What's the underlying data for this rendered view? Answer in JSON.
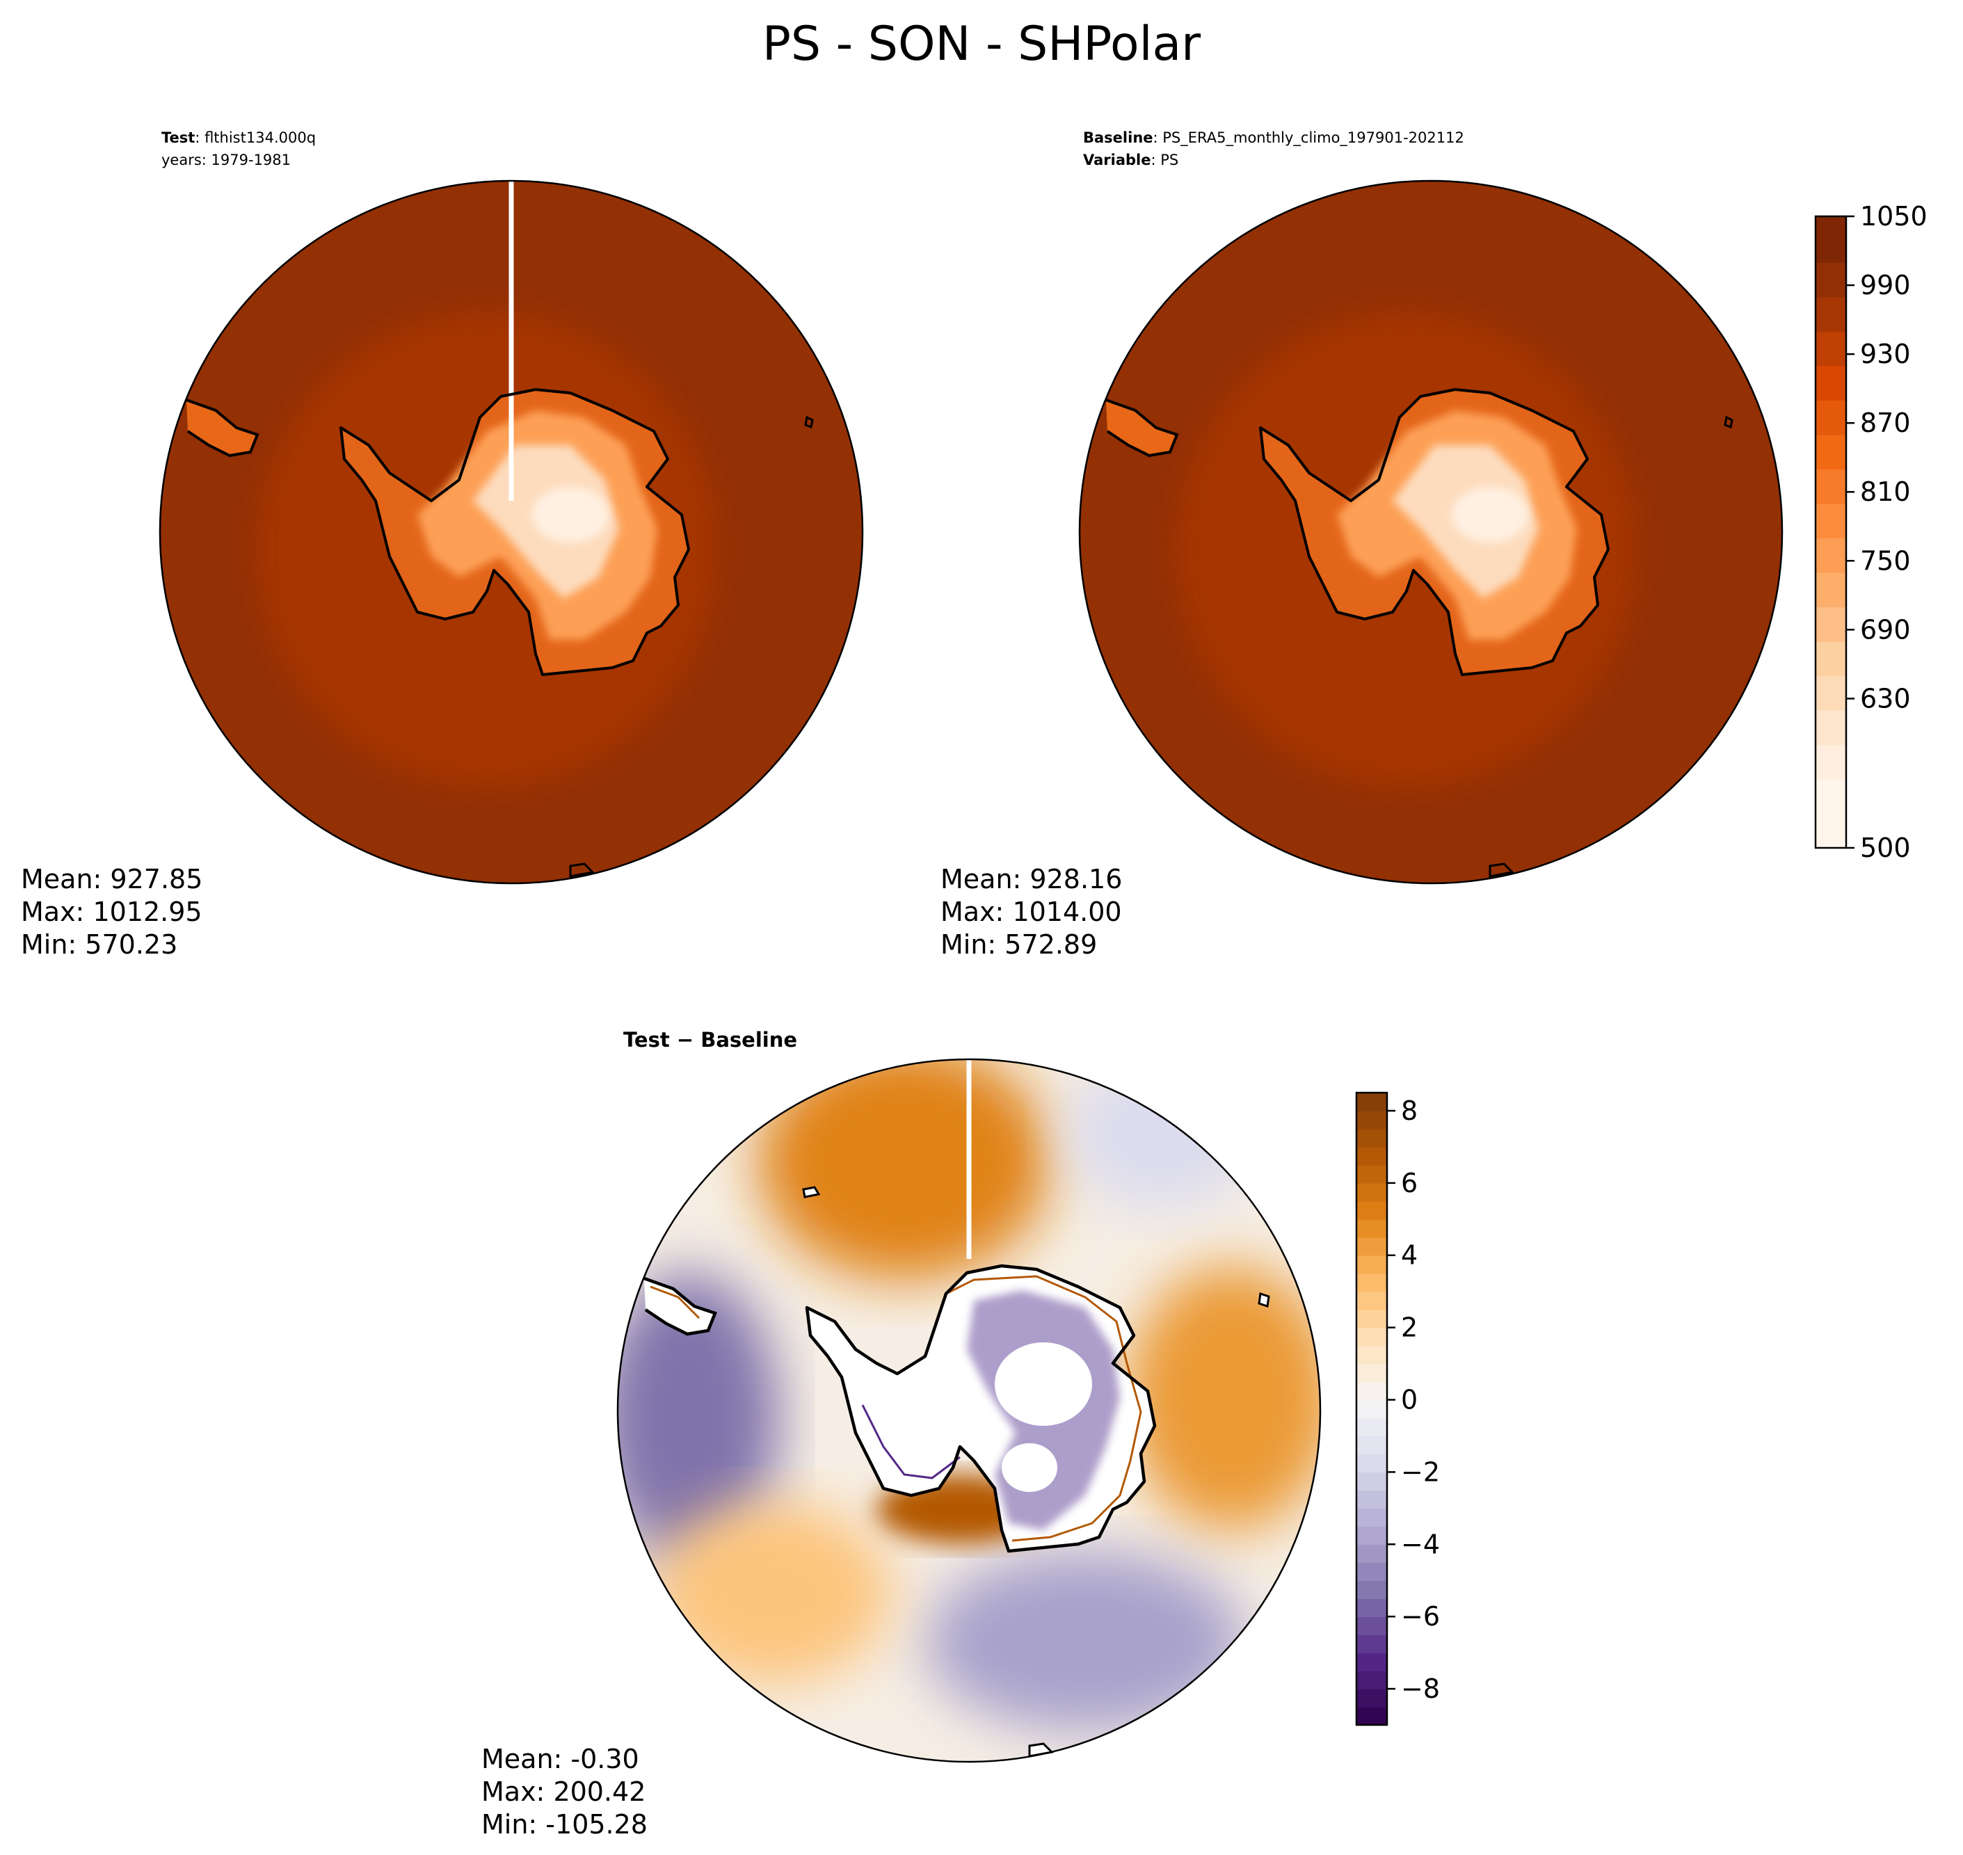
{
  "figure": {
    "title": "PS - SON - SHPolar"
  },
  "panels": {
    "test": {
      "header_bold": "Test",
      "header_value": ": flthist134.000q",
      "header_line2": "years: 1979-1981",
      "stats": {
        "mean": "Mean: 927.85",
        "max": "Max: 1012.95",
        "min": "Min: 570.23"
      }
    },
    "baseline": {
      "header_bold": "Baseline",
      "header_value": ": PS_ERA5_monthly_climo_197901-202112",
      "header_bold2": "Variable",
      "header_value2": ": PS",
      "stats": {
        "mean": "Mean: 928.16",
        "max": "Max: 1014.00",
        "min": "Min: 572.89"
      }
    },
    "diff": {
      "header": "Test − Baseline",
      "stats": {
        "mean": "Mean: -0.30",
        "max": "Max: 200.42",
        "min": "Min: -105.28"
      }
    }
  },
  "colors": {
    "oranges": [
      "#fff5eb",
      "#fee6ce",
      "#fdd0a2",
      "#fdae6b",
      "#fd8d3c",
      "#f16913",
      "#d94801",
      "#a63603",
      "#7f2704"
    ],
    "puor": [
      "#2d004b",
      "#542788",
      "#8073ac",
      "#b2abd2",
      "#d8daeb",
      "#f7f7f7",
      "#fee0b6",
      "#fdb863",
      "#e08214",
      "#b35806",
      "#7f3b08"
    ],
    "coast": "#000000"
  },
  "chart_data": [
    {
      "type": "heatmap",
      "panel": "test",
      "projection": "south-polar-stereographic",
      "variable": "PS",
      "stats": {
        "mean": 927.85,
        "max": 1012.95,
        "min": 570.23
      },
      "colormap": "Oranges",
      "field_summary": {
        "ocean": 990,
        "inner_ring": 970,
        "coast": 880,
        "plateau_edge": 720,
        "plateau_center": 590
      }
    },
    {
      "type": "heatmap",
      "panel": "baseline",
      "projection": "south-polar-stereographic",
      "variable": "PS",
      "stats": {
        "mean": 928.16,
        "max": 1014.0,
        "min": 572.89
      },
      "colormap": "Oranges",
      "field_summary": {
        "ocean": 990,
        "inner_ring": 970,
        "coast": 880,
        "plateau_edge": 720,
        "plateau_center": 590
      }
    },
    {
      "type": "heatmap",
      "panel": "diff",
      "projection": "south-polar-stereographic",
      "variable": "PS difference",
      "stats": {
        "mean": -0.3,
        "max": 200.42,
        "min": -105.28
      },
      "colormap": "PuOr_r",
      "anomalies": [
        {
          "region": "west",
          "value": -6.0
        },
        {
          "region": "north-center",
          "value": 4.5
        },
        {
          "region": "east",
          "value": 4.0
        },
        {
          "region": "south-center",
          "value": -4.5
        },
        {
          "region": "south-west",
          "value": 2.0
        },
        {
          "region": "south-near-coast",
          "value": 6.5
        }
      ]
    }
  ],
  "colorbars": {
    "upper": {
      "range": [
        500,
        1050
      ],
      "levels": [
        500,
        560,
        590,
        620,
        650,
        680,
        710,
        740,
        770,
        800,
        830,
        860,
        890,
        920,
        950,
        980,
        1010,
        1050
      ],
      "ticks": [
        500,
        630,
        690,
        750,
        810,
        870,
        930,
        990,
        1050
      ],
      "tick_labels": [
        "500",
        "630",
        "690",
        "750",
        "810",
        "870",
        "930",
        "990",
        "1050"
      ]
    },
    "diff": {
      "range": [
        -9,
        8.5
      ],
      "step": 0.5,
      "ticks": [
        -8,
        -6,
        -4,
        -2,
        0,
        2,
        4,
        6,
        8
      ],
      "tick_labels": [
        "−8",
        "−6",
        "−4",
        "−2",
        "0",
        "2",
        "4",
        "6",
        "8"
      ]
    }
  }
}
